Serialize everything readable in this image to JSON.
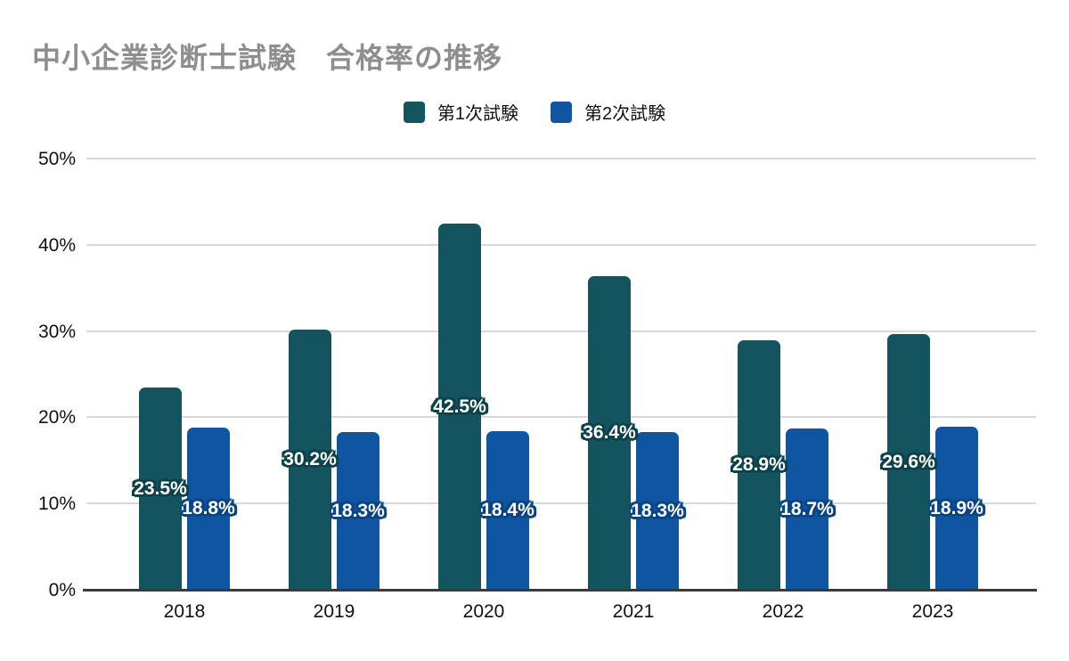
{
  "title": "中小企業診断士試験　合格率の推移",
  "colors": {
    "title_text": "#8E8E8E",
    "gridline": "#D9D9D9",
    "axis_line": "#3A3A3A",
    "tick_text": "#111111",
    "series1": "#14545F",
    "series1_label_outline": "#0D414B",
    "series2": "#0F55A2",
    "series2_label_outline": "#0A4484",
    "background": "#FFFFFF"
  },
  "chart_data": {
    "type": "bar",
    "title": "中小企業診断士試験　合格率の推移",
    "categories": [
      "2018",
      "2019",
      "2020",
      "2021",
      "2022",
      "2023"
    ],
    "series": [
      {
        "name": "第1次試験",
        "color": "#14545F",
        "label_outline": "#0D414B",
        "values": [
          23.5,
          30.2,
          42.5,
          36.4,
          28.9,
          29.6
        ],
        "labels": [
          "23.5%",
          "30.2%",
          "42.5%",
          "36.4%",
          "28.9%",
          "29.6%"
        ]
      },
      {
        "name": "第2次試験",
        "color": "#0F55A2",
        "label_outline": "#0A4484",
        "values": [
          18.8,
          18.3,
          18.4,
          18.3,
          18.7,
          18.9
        ],
        "labels": [
          "18.8%",
          "18.3%",
          "18.4%",
          "18.3%",
          "18.7%",
          "18.9%"
        ]
      }
    ],
    "xlabel": "",
    "ylabel": "",
    "y_ticks": [
      "0%",
      "10%",
      "20%",
      "30%",
      "40%",
      "50%"
    ],
    "y_tick_values": [
      0,
      10,
      20,
      30,
      40,
      50
    ],
    "ylim": [
      0,
      50
    ],
    "grid": true,
    "legend_position": "top",
    "value_labels": "centered-in-bar, white bold with bar-color outline"
  }
}
